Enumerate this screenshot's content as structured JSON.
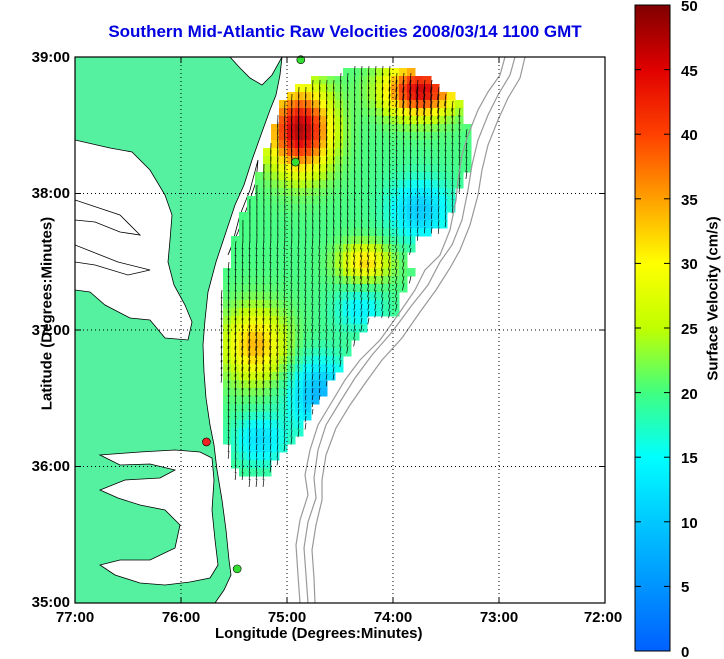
{
  "title": "Southern Mid-Atlantic Raw Velocities 2008/03/14 1100 GMT",
  "x_axis": {
    "label": "Longitude (Degrees:Minutes)",
    "ticks": [
      "77:00",
      "76:00",
      "75:00",
      "74:00",
      "73:00",
      "72:00"
    ]
  },
  "y_axis": {
    "label": "Latitude (Degrees:Minutes)",
    "ticks": [
      "39:00",
      "38:00",
      "37:00",
      "36:00",
      "35:00"
    ]
  },
  "colorbar": {
    "label": "Surface Velocity (cm/s)",
    "ticks": [
      "50",
      "45",
      "40",
      "35",
      "30",
      "25",
      "20",
      "15",
      "10",
      "5",
      "0"
    ],
    "range": [
      0,
      50
    ],
    "colormap": "jet"
  },
  "map": {
    "extent": {
      "lon": [
        -77,
        -72
      ],
      "lat": [
        35,
        39
      ]
    },
    "land_color": "#55f0a0",
    "grid": "dotted",
    "stations": [
      {
        "lon": -74.87,
        "lat": 38.98,
        "color": "#33dd33"
      },
      {
        "lon": -74.92,
        "lat": 38.23,
        "color": "#33dd33"
      },
      {
        "lon": -75.76,
        "lat": 36.18,
        "color": "#ee2222"
      },
      {
        "lon": -75.47,
        "lat": 35.25,
        "color": "#33dd33"
      }
    ]
  }
}
